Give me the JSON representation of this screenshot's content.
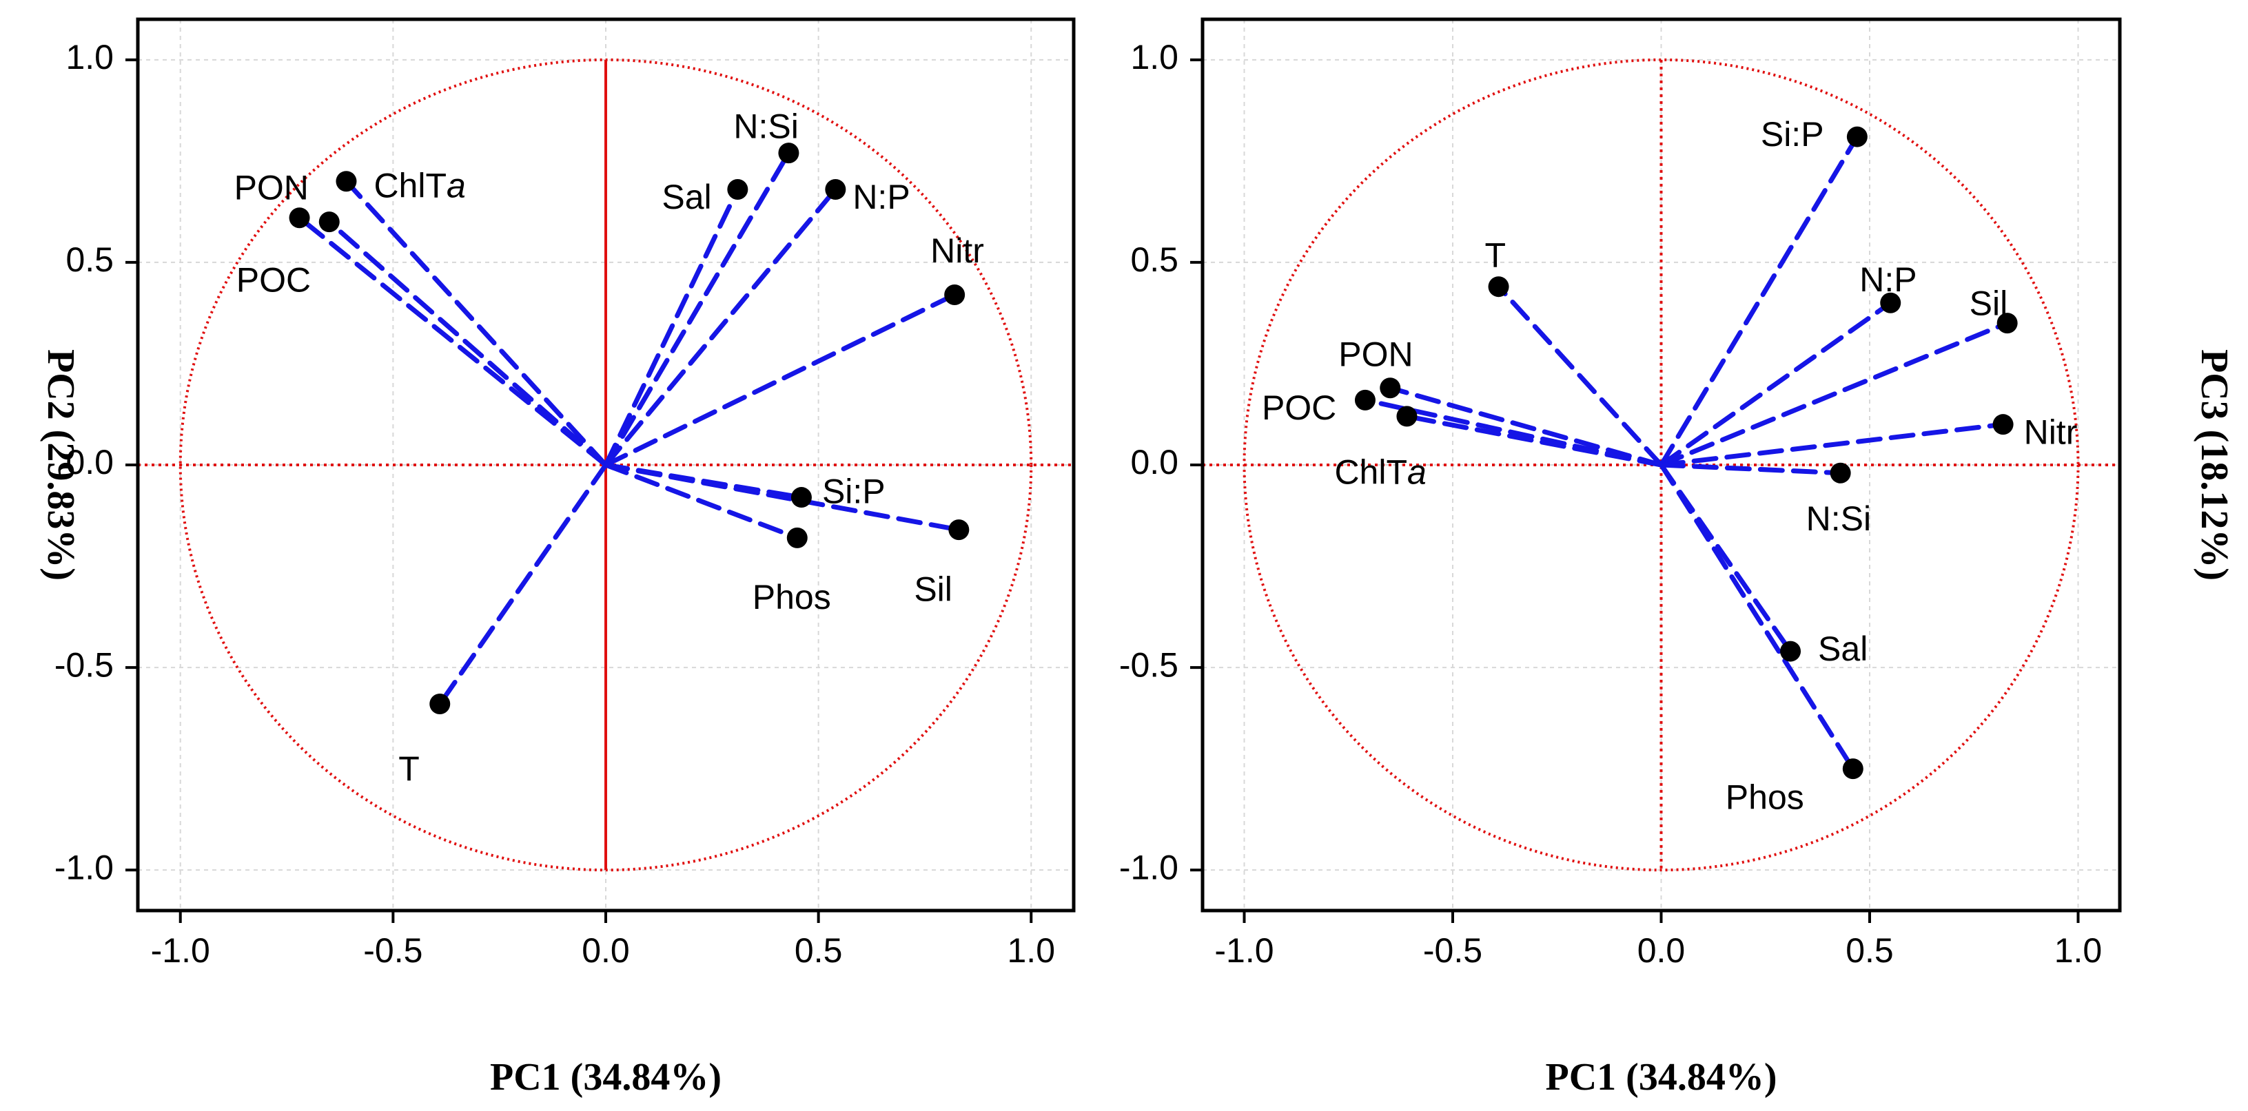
{
  "colors": {
    "vector": "#1515e6",
    "circle": "#e01010",
    "grid": "#d8d8d8",
    "point": "#000000"
  },
  "chart_data": [
    {
      "type": "scatter",
      "subtype": "pca-correlation-circle",
      "xlabel": "PC1 (34.84%)",
      "ylabel": "PC2 (29.83%)",
      "xlim": [
        -1.1,
        1.1
      ],
      "ylim": [
        -1.1,
        1.1
      ],
      "xticks": [
        "-1.0",
        "-0.5",
        "0.0",
        "0.5",
        "1.0"
      ],
      "yticks": [
        "1.0",
        "0.5",
        "0.0",
        "-0.5",
        "-1.0"
      ],
      "grid": true,
      "points": [
        {
          "name": "PON",
          "x": -0.72,
          "y": 0.61
        },
        {
          "name": "POC",
          "x": -0.65,
          "y": 0.6
        },
        {
          "name": "ChlTa",
          "x": -0.61,
          "y": 0.7,
          "label": "ChlT",
          "label_italic": "a"
        },
        {
          "name": "Sal",
          "x": 0.31,
          "y": 0.68
        },
        {
          "name": "N:Si",
          "x": 0.43,
          "y": 0.77
        },
        {
          "name": "N:P",
          "x": 0.54,
          "y": 0.68
        },
        {
          "name": "Nitr",
          "x": 0.82,
          "y": 0.42
        },
        {
          "name": "Si:P",
          "x": 0.46,
          "y": -0.08
        },
        {
          "name": "Phos",
          "x": 0.45,
          "y": -0.18
        },
        {
          "name": "Sil",
          "x": 0.83,
          "y": -0.16
        },
        {
          "name": "T",
          "x": -0.39,
          "y": -0.59
        }
      ]
    },
    {
      "type": "scatter",
      "subtype": "pca-correlation-circle",
      "xlabel": "PC1 (34.84%)",
      "ylabel": "PC3 (18.12%)",
      "xlim": [
        -1.1,
        1.1
      ],
      "ylim": [
        -1.1,
        1.1
      ],
      "xticks": [
        "-1.0",
        "-0.5",
        "0.0",
        "0.5",
        "1.0"
      ],
      "yticks": [
        "1.0",
        "0.5",
        "0.0",
        "-0.5",
        "-1.0"
      ],
      "grid": true,
      "points": [
        {
          "name": "Si:P",
          "x": 0.47,
          "y": 0.81
        },
        {
          "name": "T",
          "x": -0.39,
          "y": 0.44
        },
        {
          "name": "N:P",
          "x": 0.55,
          "y": 0.4
        },
        {
          "name": "Sil",
          "x": 0.83,
          "y": 0.35
        },
        {
          "name": "PON",
          "x": -0.65,
          "y": 0.19
        },
        {
          "name": "POC",
          "x": -0.71,
          "y": 0.16
        },
        {
          "name": "ChlTa",
          "x": -0.61,
          "y": 0.12,
          "label": "ChlT",
          "label_italic": "a"
        },
        {
          "name": "Nitr",
          "x": 0.82,
          "y": 0.1
        },
        {
          "name": "N:Si",
          "x": 0.43,
          "y": -0.02
        },
        {
          "name": "Sal",
          "x": 0.31,
          "y": -0.46
        },
        {
          "name": "Phos",
          "x": 0.46,
          "y": -0.75
        }
      ]
    }
  ]
}
